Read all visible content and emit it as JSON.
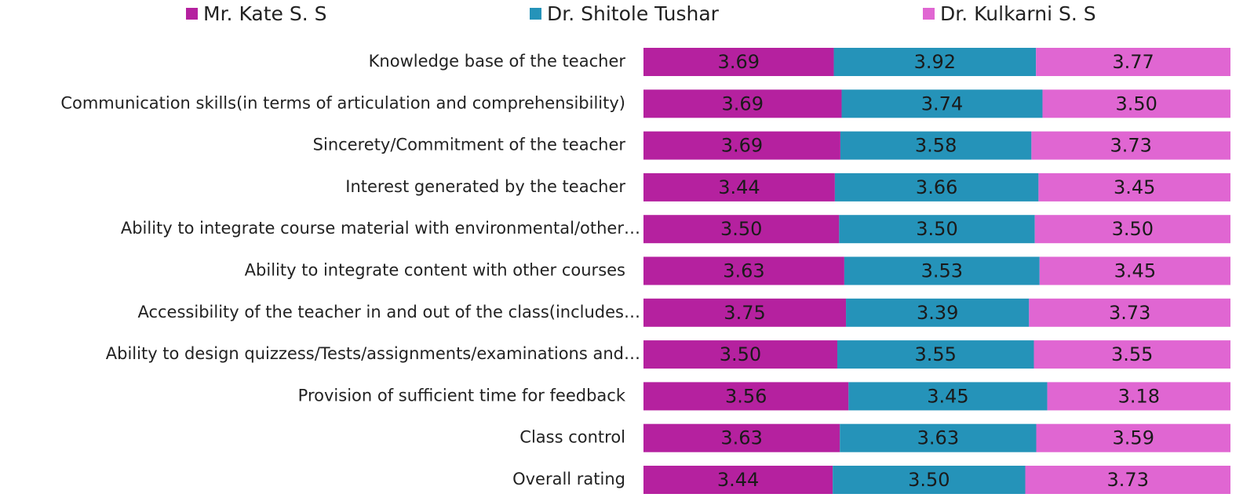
{
  "chart_data": {
    "type": "bar",
    "orientation": "horizontal",
    "stacked": "percent",
    "legend": "top",
    "categories": [
      "Knowledge base of the teacher",
      "Communication skills(in terms of articulation and comprehensibility)",
      "Sincerety/Commitment of the teacher",
      "Interest generated by the teacher",
      "Ability to integrate course material with environmental/other…",
      "Ability to integrate content with other courses",
      "Accessibility of the teacher in and out of the class(includes…",
      "Ability to design quizzess/Tests/assignments/examinations and…",
      "Provision of  sufficient time for feedback",
      "Class control",
      "Overall rating"
    ],
    "series": [
      {
        "name": "Mr. Kate S. S",
        "color": "#b5219f",
        "values": [
          3.69,
          3.69,
          3.69,
          3.44,
          3.5,
          3.63,
          3.75,
          3.5,
          3.56,
          3.63,
          3.44
        ],
        "value_labels": [
          "3.69",
          "3.69",
          "3.69",
          "3.44",
          "3.50",
          "3.63",
          "3.75",
          "3.50",
          "3.56",
          "3.63",
          "3.44"
        ]
      },
      {
        "name": "Dr. Shitole Tushar",
        "color": "#2593b9",
        "values": [
          3.92,
          3.74,
          3.58,
          3.66,
          3.5,
          3.53,
          3.39,
          3.55,
          3.45,
          3.63,
          3.5
        ],
        "value_labels": [
          "3.92",
          "3.74",
          "3.58",
          "3.66",
          "3.50",
          "3.53",
          "3.39",
          "3.55",
          "3.45",
          "3.63",
          "3.50"
        ]
      },
      {
        "name": "Dr. Kulkarni S. S",
        "color": "#e066d2",
        "values": [
          3.77,
          3.5,
          3.73,
          3.45,
          3.5,
          3.45,
          3.73,
          3.55,
          3.18,
          3.59,
          3.73
        ],
        "value_labels": [
          "3.77",
          "3.50",
          "3.73",
          "3.45",
          "3.50",
          "3.45",
          "3.73",
          "3.55",
          "3.18",
          "3.59",
          "3.73"
        ]
      }
    ]
  }
}
